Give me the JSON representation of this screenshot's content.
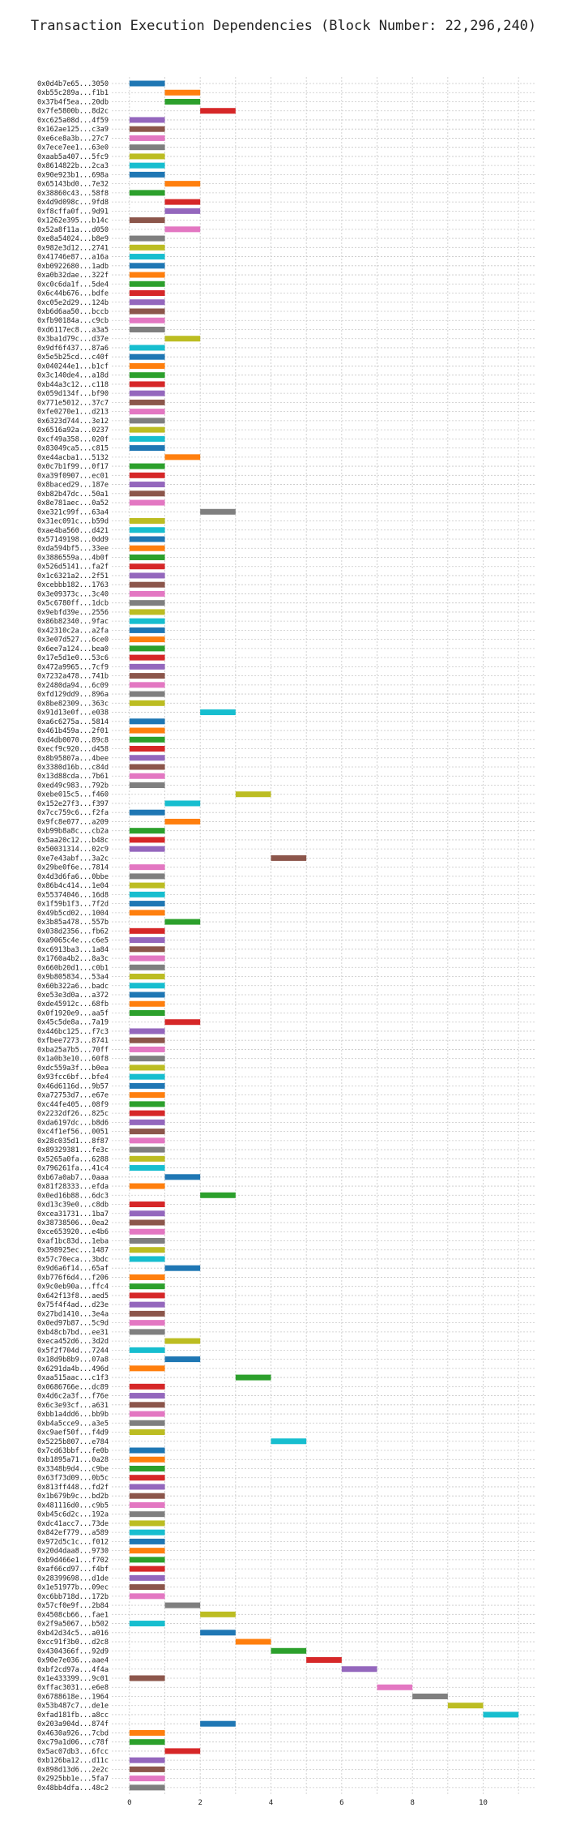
{
  "chart_data": {
    "type": "bar",
    "orientation": "horizontal",
    "title": "Transaction Execution Dependencies (Block Number: 22,296,240)",
    "xlabel": "",
    "ylabel": "",
    "x_ticks": [
      0,
      2,
      4,
      6,
      8,
      10
    ],
    "xlim": [
      -0.5,
      11.5
    ],
    "grid": true,
    "palette": [
      "#1f77b4",
      "#ff7f0e",
      "#2ca02c",
      "#d62728",
      "#9467bd",
      "#8c564b",
      "#e377c2",
      "#7f7f7f",
      "#bcbd22",
      "#17becf"
    ],
    "bars": [
      {
        "label": "0x0d4b7e65...3050",
        "start": 0,
        "end": 1
      },
      {
        "label": "0xb55c289a...f1b1",
        "start": 1,
        "end": 2
      },
      {
        "label": "0x37b4f5ea...20db",
        "start": 1,
        "end": 2
      },
      {
        "label": "0x7fe5800b...8d2c",
        "start": 2,
        "end": 3
      },
      {
        "label": "0xc625a08d...4f59",
        "start": 0,
        "end": 1
      },
      {
        "label": "0x162ae125...c3a9",
        "start": 0,
        "end": 1
      },
      {
        "label": "0xe6ce8a3b...27c7",
        "start": 0,
        "end": 1
      },
      {
        "label": "0x7ece7ee1...63e0",
        "start": 0,
        "end": 1
      },
      {
        "label": "0xaab5a407...5fc9",
        "start": 0,
        "end": 1
      },
      {
        "label": "0x8614822b...2ca3",
        "start": 0,
        "end": 1
      },
      {
        "label": "0x90e923b1...698a",
        "start": 0,
        "end": 1
      },
      {
        "label": "0x65143bd0...7e32",
        "start": 1,
        "end": 2
      },
      {
        "label": "0x38860c43...58f8",
        "start": 0,
        "end": 1
      },
      {
        "label": "0x4d9d098c...9fd8",
        "start": 1,
        "end": 2
      },
      {
        "label": "0xf8cffa0f...9d91",
        "start": 1,
        "end": 2
      },
      {
        "label": "0x1262e395...b14c",
        "start": 0,
        "end": 1
      },
      {
        "label": "0x52a8f11a...d050",
        "start": 1,
        "end": 2
      },
      {
        "label": "0xe8a54024...b8e9",
        "start": 0,
        "end": 1
      },
      {
        "label": "0x982e3d12...2741",
        "start": 0,
        "end": 1
      },
      {
        "label": "0x41746e87...a16a",
        "start": 0,
        "end": 1
      },
      {
        "label": "0xb0922680...1adb",
        "start": 0,
        "end": 1
      },
      {
        "label": "0xa0b32dae...322f",
        "start": 0,
        "end": 1
      },
      {
        "label": "0xc0c6da1f...5de4",
        "start": 0,
        "end": 1
      },
      {
        "label": "0x6c44b676...bdfe",
        "start": 0,
        "end": 1
      },
      {
        "label": "0xc05e2d29...124b",
        "start": 0,
        "end": 1
      },
      {
        "label": "0xb6d6aa50...bccb",
        "start": 0,
        "end": 1
      },
      {
        "label": "0xfb90184a...c9cb",
        "start": 0,
        "end": 1
      },
      {
        "label": "0xd6117ec8...a3a5",
        "start": 0,
        "end": 1
      },
      {
        "label": "0x3ba1d79c...d37e",
        "start": 1,
        "end": 2
      },
      {
        "label": "0x9df6f437...87a6",
        "start": 0,
        "end": 1
      },
      {
        "label": "0x5e5b25cd...c40f",
        "start": 0,
        "end": 1
      },
      {
        "label": "0x040244e1...b1cf",
        "start": 0,
        "end": 1
      },
      {
        "label": "0x3c140de4...a18d",
        "start": 0,
        "end": 1
      },
      {
        "label": "0xb44a3c12...c118",
        "start": 0,
        "end": 1
      },
      {
        "label": "0x059d134f...bf90",
        "start": 0,
        "end": 1
      },
      {
        "label": "0x771e5012...37c7",
        "start": 0,
        "end": 1
      },
      {
        "label": "0xfe0270e1...d213",
        "start": 0,
        "end": 1
      },
      {
        "label": "0x6323d744...3e12",
        "start": 0,
        "end": 1
      },
      {
        "label": "0x6516a92a...0237",
        "start": 0,
        "end": 1
      },
      {
        "label": "0xcf49a358...020f",
        "start": 0,
        "end": 1
      },
      {
        "label": "0x83049ca5...c815",
        "start": 0,
        "end": 1
      },
      {
        "label": "0xe44acba1...5132",
        "start": 1,
        "end": 2
      },
      {
        "label": "0x0c7b1f99...0f17",
        "start": 0,
        "end": 1
      },
      {
        "label": "0xa39f0907...ec01",
        "start": 0,
        "end": 1
      },
      {
        "label": "0x8baced29...187e",
        "start": 0,
        "end": 1
      },
      {
        "label": "0xb82b47dc...50a1",
        "start": 0,
        "end": 1
      },
      {
        "label": "0x8e781aec...0a52",
        "start": 0,
        "end": 1
      },
      {
        "label": "0xe321c99f...63a4",
        "start": 2,
        "end": 3
      },
      {
        "label": "0x31ec091c...b59d",
        "start": 0,
        "end": 1
      },
      {
        "label": "0xae4ba560...d421",
        "start": 0,
        "end": 1
      },
      {
        "label": "0x57149198...0dd9",
        "start": 0,
        "end": 1
      },
      {
        "label": "0xda594bf5...33ee",
        "start": 0,
        "end": 1
      },
      {
        "label": "0x3886559a...4b0f",
        "start": 0,
        "end": 1
      },
      {
        "label": "0x526d5141...fa2f",
        "start": 0,
        "end": 1
      },
      {
        "label": "0x1c6321a2...2f51",
        "start": 0,
        "end": 1
      },
      {
        "label": "0xcebbb182...1763",
        "start": 0,
        "end": 1
      },
      {
        "label": "0x3e09373c...3c40",
        "start": 0,
        "end": 1
      },
      {
        "label": "0x5c6780ff...1dcb",
        "start": 0,
        "end": 1
      },
      {
        "label": "0x9ebfd39e...2556",
        "start": 0,
        "end": 1
      },
      {
        "label": "0x86b82340...9fac",
        "start": 0,
        "end": 1
      },
      {
        "label": "0x42310c2a...a2fa",
        "start": 0,
        "end": 1
      },
      {
        "label": "0x3e07d527...6ce0",
        "start": 0,
        "end": 1
      },
      {
        "label": "0x6ee7a124...bea0",
        "start": 0,
        "end": 1
      },
      {
        "label": "0x17e5d1e0...53c6",
        "start": 0,
        "end": 1
      },
      {
        "label": "0x472a9965...7cf9",
        "start": 0,
        "end": 1
      },
      {
        "label": "0x7232a478...741b",
        "start": 0,
        "end": 1
      },
      {
        "label": "0x2480da94...6c09",
        "start": 0,
        "end": 1
      },
      {
        "label": "0xfd129dd9...896a",
        "start": 0,
        "end": 1
      },
      {
        "label": "0x8be82309...363c",
        "start": 0,
        "end": 1
      },
      {
        "label": "0x91d13e0f...e038",
        "start": 2,
        "end": 3
      },
      {
        "label": "0xa6c6275a...5814",
        "start": 0,
        "end": 1
      },
      {
        "label": "0x461b459a...2f01",
        "start": 0,
        "end": 1
      },
      {
        "label": "0xd4db0070...89c8",
        "start": 0,
        "end": 1
      },
      {
        "label": "0xecf9c920...d458",
        "start": 0,
        "end": 1
      },
      {
        "label": "0x8b95807a...4bee",
        "start": 0,
        "end": 1
      },
      {
        "label": "0x3380d16b...c84d",
        "start": 0,
        "end": 1
      },
      {
        "label": "0x13d88cda...7b61",
        "start": 0,
        "end": 1
      },
      {
        "label": "0xed49c983...792b",
        "start": 0,
        "end": 1
      },
      {
        "label": "0xebe015c5...f460",
        "start": 3,
        "end": 4
      },
      {
        "label": "0x152e27f3...f397",
        "start": 1,
        "end": 2
      },
      {
        "label": "0x7cc759c6...f2fa",
        "start": 0,
        "end": 1
      },
      {
        "label": "0x9fc8e077...a209",
        "start": 1,
        "end": 2
      },
      {
        "label": "0xb99b8a8c...cb2a",
        "start": 0,
        "end": 1
      },
      {
        "label": "0x5aa20c12...b48c",
        "start": 0,
        "end": 1
      },
      {
        "label": "0x50031314...02c9",
        "start": 0,
        "end": 1
      },
      {
        "label": "0xe7e43abf...3a2c",
        "start": 4,
        "end": 5
      },
      {
        "label": "0x29be0f6e...7814",
        "start": 0,
        "end": 1
      },
      {
        "label": "0x4d3d6fa6...0bbe",
        "start": 0,
        "end": 1
      },
      {
        "label": "0x86b4c414...1e04",
        "start": 0,
        "end": 1
      },
      {
        "label": "0x55374046...16d8",
        "start": 0,
        "end": 1
      },
      {
        "label": "0x1f59b1f3...7f2d",
        "start": 0,
        "end": 1
      },
      {
        "label": "0x49b5cd02...1004",
        "start": 0,
        "end": 1
      },
      {
        "label": "0x3b85a478...557b",
        "start": 1,
        "end": 2
      },
      {
        "label": "0x038d2356...fb62",
        "start": 0,
        "end": 1
      },
      {
        "label": "0xa9065c4e...c6e5",
        "start": 0,
        "end": 1
      },
      {
        "label": "0xc6913ba3...1a84",
        "start": 0,
        "end": 1
      },
      {
        "label": "0x1760a4b2...8a3c",
        "start": 0,
        "end": 1
      },
      {
        "label": "0x660b20d1...c0b1",
        "start": 0,
        "end": 1
      },
      {
        "label": "0x9b805834...53a4",
        "start": 0,
        "end": 1
      },
      {
        "label": "0x60b322a6...badc",
        "start": 0,
        "end": 1
      },
      {
        "label": "0xe53e3d0a...a372",
        "start": 0,
        "end": 1
      },
      {
        "label": "0xde45912c...68fb",
        "start": 0,
        "end": 1
      },
      {
        "label": "0x0f1920e9...aa5f",
        "start": 0,
        "end": 1
      },
      {
        "label": "0x45c5de8a...7a19",
        "start": 1,
        "end": 2
      },
      {
        "label": "0x446bc125...f7c3",
        "start": 0,
        "end": 1
      },
      {
        "label": "0xfbee7273...8741",
        "start": 0,
        "end": 1
      },
      {
        "label": "0xba25a7b5...70ff",
        "start": 0,
        "end": 1
      },
      {
        "label": "0x1a0b3e10...60f8",
        "start": 0,
        "end": 1
      },
      {
        "label": "0xdc559a3f...b0ea",
        "start": 0,
        "end": 1
      },
      {
        "label": "0x93fcc6bf...bfe4",
        "start": 0,
        "end": 1
      },
      {
        "label": "0x46d6116d...9b57",
        "start": 0,
        "end": 1
      },
      {
        "label": "0xa72753d7...e67e",
        "start": 0,
        "end": 1
      },
      {
        "label": "0xc44fe405...08f9",
        "start": 0,
        "end": 1
      },
      {
        "label": "0x2232df26...825c",
        "start": 0,
        "end": 1
      },
      {
        "label": "0xda6197dc...b8d6",
        "start": 0,
        "end": 1
      },
      {
        "label": "0xc4f1ef56...0051",
        "start": 0,
        "end": 1
      },
      {
        "label": "0x28c035d1...8f87",
        "start": 0,
        "end": 1
      },
      {
        "label": "0x89329381...fe3c",
        "start": 0,
        "end": 1
      },
      {
        "label": "0x5265a0fa...6288",
        "start": 0,
        "end": 1
      },
      {
        "label": "0x796261fa...41c4",
        "start": 0,
        "end": 1
      },
      {
        "label": "0xb67a0ab7...0aaa",
        "start": 1,
        "end": 2
      },
      {
        "label": "0x81f28333...efda",
        "start": 0,
        "end": 1
      },
      {
        "label": "0x0ed16b88...6dc3",
        "start": 2,
        "end": 3
      },
      {
        "label": "0xd13c39e0...c8db",
        "start": 0,
        "end": 1
      },
      {
        "label": "0xcea31731...1ba7",
        "start": 0,
        "end": 1
      },
      {
        "label": "0x38738506...0ea2",
        "start": 0,
        "end": 1
      },
      {
        "label": "0xce653920...e4b6",
        "start": 0,
        "end": 1
      },
      {
        "label": "0xaf1bc83d...1eba",
        "start": 0,
        "end": 1
      },
      {
        "label": "0x398925ec...1487",
        "start": 0,
        "end": 1
      },
      {
        "label": "0x57c70eca...3bdc",
        "start": 0,
        "end": 1
      },
      {
        "label": "0x9d6a6f14...65af",
        "start": 1,
        "end": 2
      },
      {
        "label": "0xb776f6d4...f206",
        "start": 0,
        "end": 1
      },
      {
        "label": "0x9c0eb90a...ffc4",
        "start": 0,
        "end": 1
      },
      {
        "label": "0x642f13f8...aed5",
        "start": 0,
        "end": 1
      },
      {
        "label": "0x75f4f4ad...d23e",
        "start": 0,
        "end": 1
      },
      {
        "label": "0x27bd1410...3e4a",
        "start": 0,
        "end": 1
      },
      {
        "label": "0x0ed97b87...5c9d",
        "start": 0,
        "end": 1
      },
      {
        "label": "0xb48cb7bd...ee31",
        "start": 0,
        "end": 1
      },
      {
        "label": "0xeca452d6...3d2d",
        "start": 1,
        "end": 2
      },
      {
        "label": "0x5f2f704d...7244",
        "start": 0,
        "end": 1
      },
      {
        "label": "0x18d9b8b9...07a8",
        "start": 1,
        "end": 2
      },
      {
        "label": "0x6291da4b...496d",
        "start": 0,
        "end": 1
      },
      {
        "label": "0xaa515aac...c1f3",
        "start": 3,
        "end": 4
      },
      {
        "label": "0x0686766e...dc89",
        "start": 0,
        "end": 1
      },
      {
        "label": "0x4d6c2a3f...f76e",
        "start": 0,
        "end": 1
      },
      {
        "label": "0x6c3e93cf...a631",
        "start": 0,
        "end": 1
      },
      {
        "label": "0xbb1a4dd6...bb9b",
        "start": 0,
        "end": 1
      },
      {
        "label": "0xb4a5cce9...a3e5",
        "start": 0,
        "end": 1
      },
      {
        "label": "0xc9aef50f...f4d9",
        "start": 0,
        "end": 1
      },
      {
        "label": "0x5225b807...e784",
        "start": 4,
        "end": 5
      },
      {
        "label": "0x7cd63bbf...fe0b",
        "start": 0,
        "end": 1
      },
      {
        "label": "0xb1895a71...0a28",
        "start": 0,
        "end": 1
      },
      {
        "label": "0x3348b9d4...c9be",
        "start": 0,
        "end": 1
      },
      {
        "label": "0x63f73d09...0b5c",
        "start": 0,
        "end": 1
      },
      {
        "label": "0x813ff448...fd2f",
        "start": 0,
        "end": 1
      },
      {
        "label": "0x1b679b9c...bd2b",
        "start": 0,
        "end": 1
      },
      {
        "label": "0x481116d0...c9b5",
        "start": 0,
        "end": 1
      },
      {
        "label": "0xb45c6d2c...192a",
        "start": 0,
        "end": 1
      },
      {
        "label": "0xdc41acc7...73de",
        "start": 0,
        "end": 1
      },
      {
        "label": "0x842ef779...a589",
        "start": 0,
        "end": 1
      },
      {
        "label": "0x972d5c1c...f012",
        "start": 0,
        "end": 1
      },
      {
        "label": "0x20d4daa8...9730",
        "start": 0,
        "end": 1
      },
      {
        "label": "0xb9d466e1...f702",
        "start": 0,
        "end": 1
      },
      {
        "label": "0xaf66cd97...f4bf",
        "start": 0,
        "end": 1
      },
      {
        "label": "0x28399698...d1de",
        "start": 0,
        "end": 1
      },
      {
        "label": "0x1e51977b...09ec",
        "start": 0,
        "end": 1
      },
      {
        "label": "0xc6bb718d...172b",
        "start": 0,
        "end": 1
      },
      {
        "label": "0x57cf0e9f...2b84",
        "start": 1,
        "end": 2
      },
      {
        "label": "0x4508cb66...fae1",
        "start": 2,
        "end": 3
      },
      {
        "label": "0x2f9a5067...b502",
        "start": 0,
        "end": 1
      },
      {
        "label": "0xb42d34c5...a016",
        "start": 2,
        "end": 3
      },
      {
        "label": "0xcc91f3b0...d2c8",
        "start": 3,
        "end": 4
      },
      {
        "label": "0x4304366f...92d9",
        "start": 4,
        "end": 5
      },
      {
        "label": "0x90e7e036...aae4",
        "start": 5,
        "end": 6
      },
      {
        "label": "0xbf2cd97a...4f4a",
        "start": 6,
        "end": 7
      },
      {
        "label": "0x1e433399...9c01",
        "start": 0,
        "end": 1
      },
      {
        "label": "0xffac3031...e6e8",
        "start": 7,
        "end": 8
      },
      {
        "label": "0x6788618e...1964",
        "start": 8,
        "end": 9
      },
      {
        "label": "0x53b487c7...de1e",
        "start": 9,
        "end": 10
      },
      {
        "label": "0xfad181fb...a8cc",
        "start": 10,
        "end": 11
      },
      {
        "label": "0x203a904d...874f",
        "start": 2,
        "end": 3
      },
      {
        "label": "0x4630a926...7cbd",
        "start": 0,
        "end": 1
      },
      {
        "label": "0xc79a1d06...c78f",
        "start": 0,
        "end": 1
      },
      {
        "label": "0x5ac07db3...6fcc",
        "start": 1,
        "end": 2
      },
      {
        "label": "0xb126ba12...d11c",
        "start": 0,
        "end": 1
      },
      {
        "label": "0x898d13d6...2e2c",
        "start": 0,
        "end": 1
      },
      {
        "label": "0x2925bb1e...5fa7",
        "start": 0,
        "end": 1
      },
      {
        "label": "0x48bb4dfa...48c2",
        "start": 0,
        "end": 1
      }
    ]
  }
}
